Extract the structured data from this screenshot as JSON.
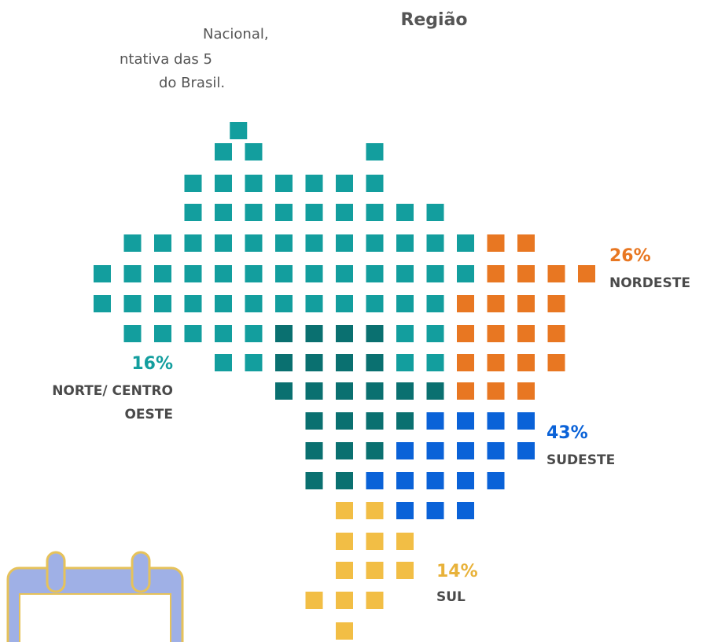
{
  "intro": {
    "lines": [
      "Nacional,",
      "ntativa das 5",
      "do Brasil."
    ]
  },
  "title": "Região",
  "regions": [
    {
      "name": "NORDESTE",
      "label": "26%"
    },
    {
      "name": "NORTE/ CENTRO",
      "name2": "OESTE",
      "label": "16%"
    },
    {
      "name": "SUDESTE",
      "label": "43%"
    },
    {
      "name": "SUL",
      "label": "14%"
    }
  ]
}
